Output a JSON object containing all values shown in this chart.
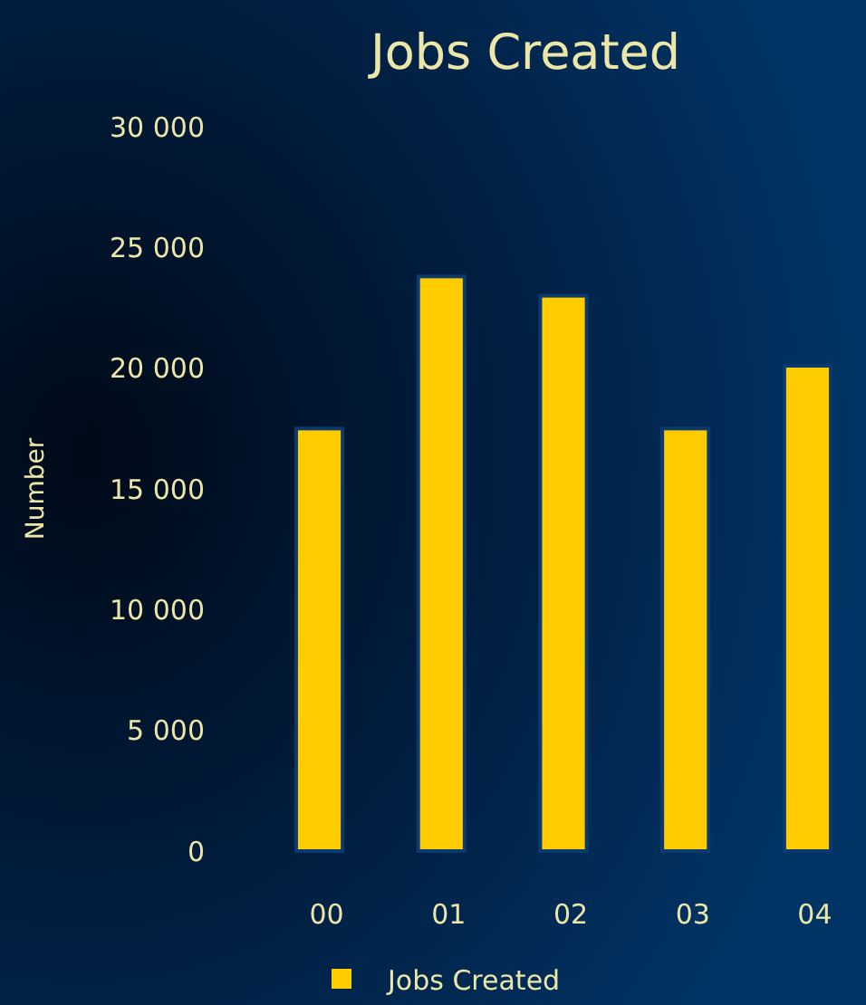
{
  "chart_data": {
    "type": "bar",
    "title": "Jobs Created",
    "ylabel": "Number",
    "categories": [
      "00",
      "01",
      "02",
      "03",
      "04"
    ],
    "series": [
      {
        "name": "Jobs Created",
        "color": "#ffcc00",
        "values": [
          17500,
          23800,
          23000,
          17500,
          20100
        ]
      }
    ],
    "ylim": [
      0,
      30000
    ],
    "yticks": [
      {
        "value": 0,
        "label": "0"
      },
      {
        "value": 5000,
        "label": "5 000"
      },
      {
        "value": 10000,
        "label": "10 000"
      },
      {
        "value": 15000,
        "label": "15 000"
      },
      {
        "value": 20000,
        "label": "20 000"
      },
      {
        "value": 25000,
        "label": "25 000"
      },
      {
        "value": 30000,
        "label": "30 000"
      }
    ],
    "grid": false,
    "legend": "bottom"
  }
}
